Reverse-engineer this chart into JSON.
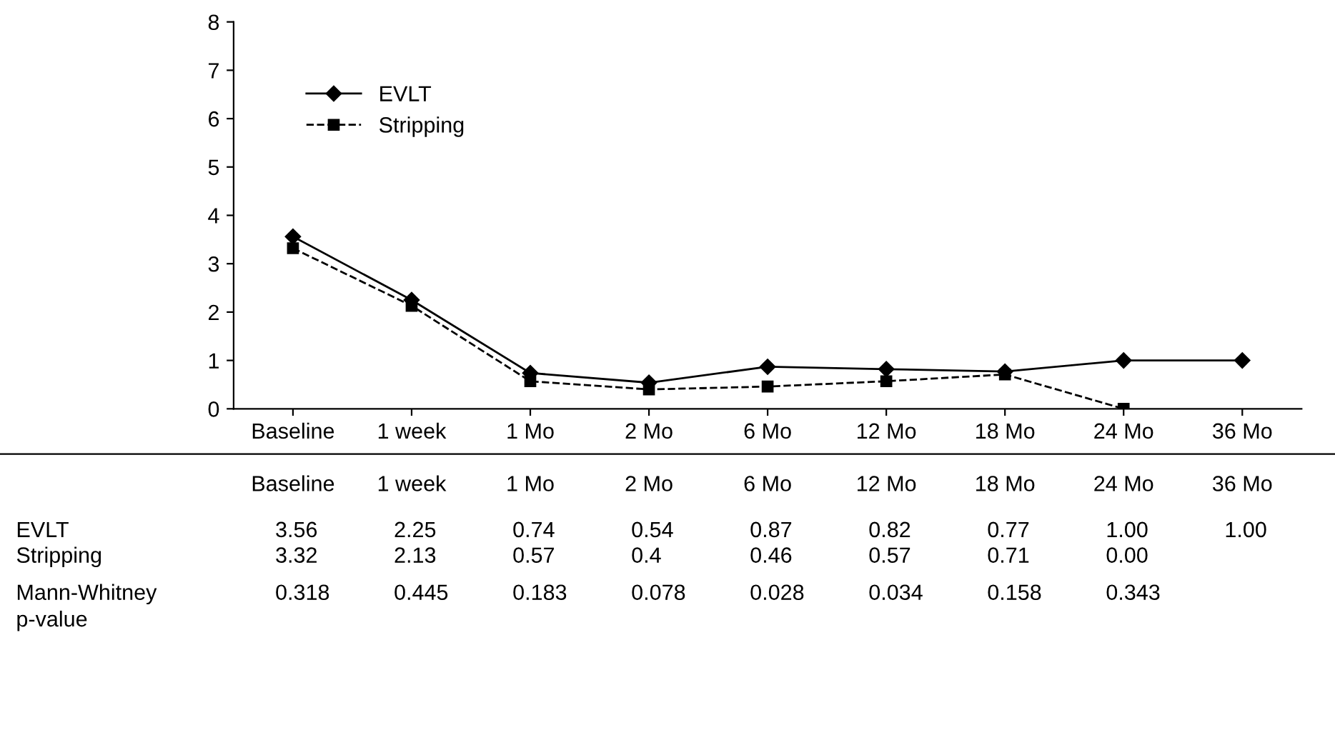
{
  "chart_data": {
    "type": "line",
    "categories": [
      "Baseline",
      "1 week",
      "1 Mo",
      "2 Mo",
      "6 Mo",
      "12 Mo",
      "18 Mo",
      "24 Mo",
      "36 Mo"
    ],
    "series": [
      {
        "name": "EVLT",
        "color": "#000000",
        "marker": "diamond",
        "line_style": "solid",
        "values": [
          3.56,
          2.25,
          0.74,
          0.54,
          0.87,
          0.82,
          0.77,
          1.0,
          1.0
        ],
        "value_labels": [
          "3.56",
          "2.25",
          "0.74",
          "0.54",
          "0.87",
          "0.82",
          "0.77",
          "1.00",
          "1.00"
        ]
      },
      {
        "name": "Stripping",
        "color": "#000000",
        "marker": "square",
        "line_style": "dashed",
        "values": [
          3.32,
          2.13,
          0.57,
          0.4,
          0.46,
          0.57,
          0.71,
          0.0,
          null
        ],
        "value_labels": [
          "3.32",
          "2.13",
          "0.57",
          "0.4",
          "0.46",
          "0.57",
          "0.71",
          "0.00",
          null
        ]
      }
    ],
    "ylim": [
      0,
      8
    ],
    "yticks": [
      0,
      1,
      2,
      3,
      4,
      5,
      6,
      7,
      8
    ],
    "legend": "top left",
    "grid": false,
    "annotations": [
      "Mann-Whitney\np-value",
      "0.318",
      "0.445",
      "0.183",
      "0.078",
      "0.028",
      "0.034",
      "0.158",
      "0.343"
    ]
  }
}
